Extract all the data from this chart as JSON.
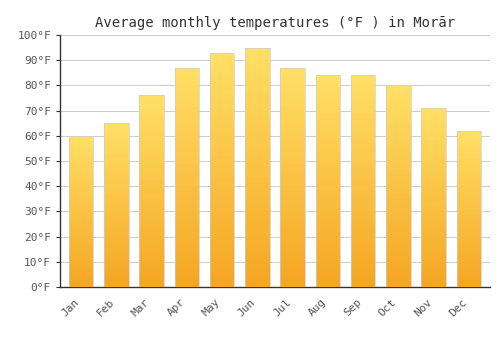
{
  "title": "Average monthly temperatures (°F ) in Morār",
  "months": [
    "Jan",
    "Feb",
    "Mar",
    "Apr",
    "May",
    "Jun",
    "Jul",
    "Aug",
    "Sep",
    "Oct",
    "Nov",
    "Dec"
  ],
  "values": [
    60,
    65,
    76,
    87,
    93,
    95,
    87,
    84,
    84,
    80,
    71,
    62
  ],
  "bar_color_bottom": "#F5A623",
  "bar_color_top": "#FFE066",
  "ylim": [
    0,
    100
  ],
  "yticks": [
    0,
    10,
    20,
    30,
    40,
    50,
    60,
    70,
    80,
    90,
    100
  ],
  "ytick_labels": [
    "0°F",
    "10°F",
    "20°F",
    "30°F",
    "40°F",
    "50°F",
    "60°F",
    "70°F",
    "80°F",
    "90°F",
    "100°F"
  ],
  "bg_color": "#FFFFFF",
  "grid_color": "#CCCCCC",
  "title_fontsize": 10,
  "tick_fontsize": 8,
  "font_family": "monospace"
}
